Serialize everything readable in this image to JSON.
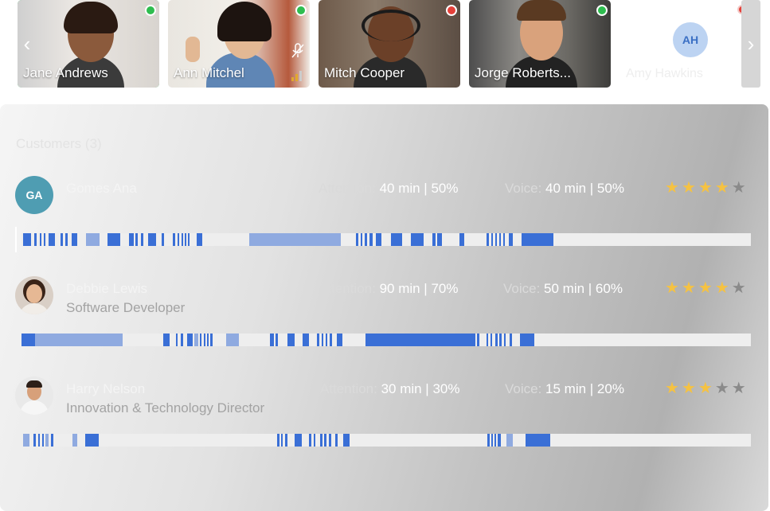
{
  "participants": [
    {
      "name": "Jane Andrews",
      "status": "online",
      "active": true
    },
    {
      "name": "Ann Mitchel",
      "status": "online",
      "active": false
    },
    {
      "name": "Mitch Cooper",
      "status": "busy",
      "active": false
    },
    {
      "name": "Jorge Roberts...",
      "status": "online",
      "active": false
    },
    {
      "name": "Amy Hawkins",
      "initials": "AH",
      "status": "busy",
      "active": false
    }
  ],
  "customers_panel": {
    "title": "Customers (3)",
    "attention_label": "Attention:",
    "voice_label": "Voice:",
    "customers": [
      {
        "initials": "GA",
        "name": "Gomes Ana",
        "role": "",
        "attention": "40 min | 50%",
        "voice": "40 min | 50%",
        "rating": 4
      },
      {
        "name": "Debbie Lewis",
        "role": "Software Developer",
        "attention": "90 min | 70%",
        "voice": "50 min | 60%",
        "rating": 4
      },
      {
        "name": "Harry Nelson",
        "role": "Innovation & Technology Director",
        "attention": "30 min | 30%",
        "voice": "15 min | 20%",
        "rating": 3
      }
    ]
  },
  "colors": {
    "accent": "#3a6fd6",
    "accent_light": "#8faae0",
    "online": "#2ebd4f",
    "busy": "#e5413a",
    "star": "#f5c242"
  }
}
